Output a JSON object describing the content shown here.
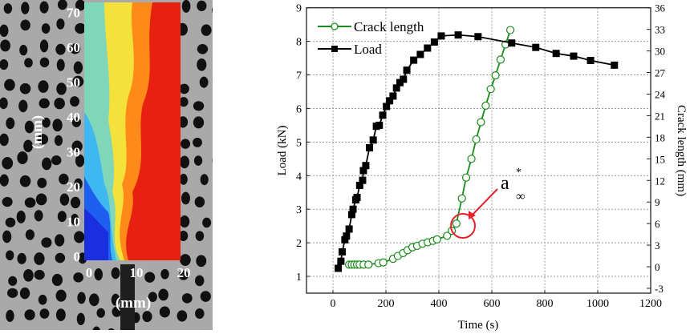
{
  "photo": {
    "y_axis_ticks": [
      "0",
      "10",
      "20",
      "30",
      "40",
      "50",
      "60",
      "70"
    ],
    "x_axis_ticks": [
      "0",
      "10",
      "20"
    ],
    "y_axis_label": "(mm)",
    "x_axis_label": "(mm)"
  },
  "chart_data": {
    "type": "line",
    "xlabel": "Time (s)",
    "ylabel": "Load (kN)",
    "y2label": "Crack length (mm)",
    "xlim": [
      -100,
      1200
    ],
    "ylim": [
      0.5,
      9
    ],
    "y2lim": [
      -3.67,
      36
    ],
    "x_ticks": [
      0,
      200,
      400,
      600,
      800,
      1000,
      1200
    ],
    "y_ticks": [
      1,
      2,
      3,
      4,
      5,
      6,
      7,
      8,
      9
    ],
    "y2_ticks": [
      -3,
      0,
      3,
      6,
      9,
      12,
      15,
      18,
      21,
      24,
      27,
      30,
      33,
      36
    ],
    "grid": true,
    "legend_position": "top-left",
    "series": [
      {
        "name": "Crack length",
        "axis": "right",
        "color": "#1a8a1a",
        "marker": "open-circle",
        "x": [
          61,
          71,
          81,
          91,
          101,
          116,
          134,
          172,
          190,
          227,
          245,
          265,
          282,
          300,
          318,
          338,
          358,
          378,
          393,
          431,
          449,
          466,
          487,
          503,
          523,
          541,
          559,
          577,
          596,
          614,
          633,
          652,
          670
        ],
        "y": [
          0.3,
          0.3,
          0.3,
          0.3,
          0.3,
          0.3,
          0.3,
          0.5,
          0.6,
          1.1,
          1.5,
          1.9,
          2.3,
          2.7,
          2.9,
          3.2,
          3.4,
          3.6,
          3.8,
          4.3,
          5.0,
          6.0,
          9.5,
          12.4,
          15.0,
          17.7,
          20.1,
          22.4,
          24.7,
          26.6,
          28.8,
          30.9,
          32.9
        ]
      },
      {
        "name": "Load",
        "axis": "left",
        "color": "#000000",
        "marker": "filled-square",
        "x": [
          20,
          30,
          35,
          45,
          51,
          61,
          71,
          76,
          86,
          91,
          101,
          112,
          115,
          124,
          138,
          152,
          164,
          175,
          188,
          202,
          214,
          227,
          240,
          253,
          266,
          279,
          305,
          330,
          357,
          383,
          409,
          473,
          548,
          675,
          766,
          843,
          909,
          973,
          1063
        ],
        "y": [
          1.24,
          1.45,
          1.73,
          2.09,
          2.2,
          2.41,
          2.84,
          3.0,
          3.28,
          3.35,
          3.71,
          3.86,
          4.15,
          4.3,
          4.83,
          5.06,
          5.47,
          5.5,
          5.8,
          6.06,
          6.23,
          6.37,
          6.61,
          6.77,
          6.87,
          7.14,
          7.44,
          7.61,
          7.8,
          7.98,
          8.16,
          8.19,
          8.14,
          7.95,
          7.82,
          7.64,
          7.56,
          7.43,
          7.29
        ]
      }
    ],
    "annotation": {
      "text": "a",
      "superscript": "*",
      "subscript": "∞",
      "color": "#e8202a",
      "points_to": {
        "x": 466,
        "y2": 6.0
      }
    }
  }
}
